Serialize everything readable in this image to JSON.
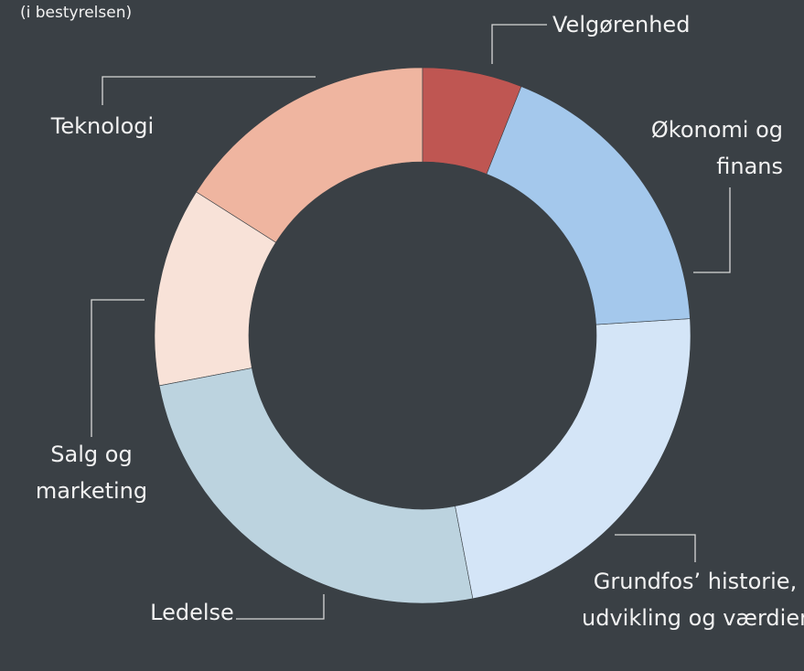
{
  "chart_data": {
    "type": "donut",
    "title": "(i bestyrelsen)",
    "categories": [
      "Velgørenhed",
      "Økonomi og finans",
      "Grundfos’ historie, udvikling og værdier",
      "Ledelse",
      "Salg og marketing",
      "Teknologi"
    ],
    "values": [
      6,
      18,
      23,
      25,
      12,
      16
    ],
    "colors": [
      "#bf5652",
      "#a4c8ec",
      "#d4e5f7",
      "#bcd3df",
      "#f8e2d8",
      "#efb5a0"
    ]
  }
}
